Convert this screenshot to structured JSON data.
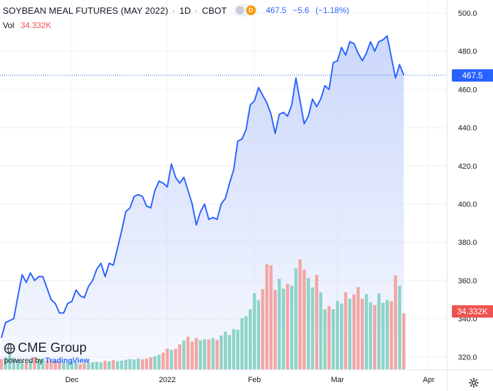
{
  "header": {
    "symbol_title": "SOYBEAN MEAL FUTURES (MAY 2022)",
    "interval": "1D",
    "exchange": "CBOT",
    "dot": "·",
    "badge_letter": "D",
    "last_price": "467.5",
    "change": "−5.6",
    "change_pct": "(−1.18%)"
  },
  "volume_legend": {
    "label": "Vol",
    "value": "34.332K"
  },
  "price_tag": "467.5",
  "volume_tag": "34.332K",
  "watermark": {
    "brand": "CME Group",
    "powered_by": "powered by",
    "platform": "TradingView"
  },
  "colors": {
    "line": "#2962ff",
    "area_top": "#c9d6fb",
    "volume_up": "#8ed3c7",
    "volume_down": "#f2a6a4",
    "price_tag_bg": "#2962ff",
    "volume_tag_bg": "#ef5350",
    "grid": "#eef0f4"
  },
  "chart_data": {
    "type": "area",
    "title": "SOYBEAN MEAL FUTURES (MAY 2022)",
    "x_labels": [
      {
        "label": "Dec",
        "index": 17
      },
      {
        "label": "2022",
        "index": 40
      },
      {
        "label": "Feb",
        "index": 61
      },
      {
        "label": "Mar",
        "index": 81
      },
      {
        "label": "Apr",
        "index": 103
      }
    ],
    "ylim": [
      316,
      503
    ],
    "y_ticks": [
      320,
      340,
      360,
      380,
      400,
      420,
      440,
      460,
      480,
      500
    ],
    "grid": true,
    "last_price": 467.5,
    "series": [
      {
        "values": [
          330,
          338,
          339,
          340,
          352,
          363,
          359,
          364,
          360,
          362,
          362,
          356,
          350,
          348,
          343,
          343,
          348,
          349,
          355,
          352,
          351,
          357,
          360,
          366,
          369,
          362,
          369,
          368,
          377,
          386,
          396,
          398,
          404,
          405,
          404,
          399,
          398,
          407,
          412,
          411,
          409,
          421,
          414,
          411,
          414,
          407,
          400,
          389,
          396,
          400,
          392,
          393,
          392,
          400,
          403,
          411,
          418,
          433,
          434,
          439,
          452,
          454,
          461,
          457,
          453,
          447,
          437,
          447,
          448,
          446,
          452,
          466,
          454,
          442,
          446,
          455,
          451,
          455,
          462,
          460,
          474,
          475,
          482,
          478,
          485,
          484,
          479,
          475,
          479,
          485,
          480,
          485,
          486,
          488,
          477,
          466,
          473,
          467.5
        ]
      },
      {
        "name": "Vol",
        "type": "bar",
        "values": [
          6.5,
          7.6,
          10.2,
          7.2,
          5.9,
          5.4,
          4.6,
          5.6,
          7.7,
          6.7,
          6.8,
          5.6,
          5.7,
          5.3,
          5.1,
          4.6,
          4.2,
          5.4,
          4.3,
          3.5,
          4.0,
          4.1,
          4.6,
          4.9,
          4.5,
          5.4,
          5.0,
          5.9,
          5.2,
          5.5,
          6.1,
          6.5,
          6.2,
          6.8,
          6.3,
          6.8,
          7.4,
          8.2,
          9.1,
          10.4,
          12.8,
          12.1,
          12.7,
          15.5,
          17.8,
          20.1,
          17.2,
          19.2,
          17.9,
          18.5,
          18.4,
          19.3,
          18.1,
          20.8,
          23.2,
          21.0,
          24.7,
          24.3,
          31.3,
          32.5,
          36.6,
          46.4,
          42.2,
          48.9,
          64.1,
          63.4,
          48.5,
          55.2,
          49.3,
          52.2,
          51.1,
          61.6,
          67.0,
          60.8,
          55.7,
          50.0,
          57.6,
          47.0,
          36.8,
          38.6,
          36.8,
          41.8,
          40.2,
          47.1,
          43.2,
          45.7,
          50.2,
          43.1,
          45.9,
          40.9,
          39.3,
          46.3,
          40.7,
          42.4,
          41.6,
          57.2,
          50.9,
          34.3
        ],
        "directions": [
          "d",
          "u",
          "u",
          "u",
          "u",
          "u",
          "d",
          "u",
          "d",
          "u",
          "u",
          "d",
          "d",
          "d",
          "d",
          "u",
          "u",
          "u",
          "u",
          "d",
          "d",
          "u",
          "u",
          "u",
          "u",
          "d",
          "u",
          "d",
          "u",
          "u",
          "u",
          "u",
          "u",
          "u",
          "d",
          "d",
          "d",
          "u",
          "u",
          "d",
          "d",
          "u",
          "d",
          "d",
          "u",
          "d",
          "d",
          "d",
          "u",
          "u",
          "d",
          "u",
          "d",
          "u",
          "u",
          "u",
          "u",
          "u",
          "u",
          "u",
          "u",
          "u",
          "u",
          "d",
          "d",
          "d",
          "d",
          "u",
          "u",
          "d",
          "u",
          "u",
          "d",
          "d",
          "u",
          "u",
          "d",
          "u",
          "u",
          "d",
          "u",
          "u",
          "u",
          "d",
          "u",
          "d",
          "d",
          "d",
          "u",
          "u",
          "d",
          "u",
          "u",
          "u",
          "d",
          "d",
          "u",
          "d"
        ]
      }
    ]
  }
}
